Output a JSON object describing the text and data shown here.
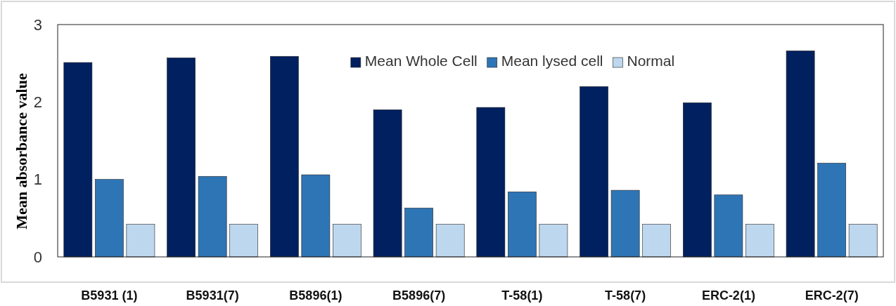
{
  "chart_data": {
    "type": "bar",
    "ylabel": "Mean absorbance value",
    "categories": [
      "B5931 (1)",
      "B5931(7)",
      "B5896(1)",
      "B5896(7)",
      "T-58(1)",
      "T-58(7)",
      "ERC-2(1)",
      "ERC-2(7)"
    ],
    "series": [
      {
        "name": "Mean Whole Cell",
        "color": "#002060",
        "values": [
          2.51,
          2.57,
          2.59,
          1.9,
          1.93,
          2.2,
          1.99,
          2.66
        ]
      },
      {
        "name": "Mean lysed cell",
        "color": "#2e75b6",
        "values": [
          1.0,
          1.04,
          1.06,
          0.63,
          0.84,
          0.86,
          0.8,
          1.21
        ]
      },
      {
        "name": "Normal",
        "color": "#bdd7ee",
        "values": [
          0.42,
          0.42,
          0.42,
          0.42,
          0.42,
          0.42,
          0.42,
          0.42
        ]
      }
    ],
    "ylim": [
      0,
      3
    ],
    "yticks": [
      0,
      1,
      2,
      3
    ],
    "grid": false,
    "legend": "top"
  }
}
